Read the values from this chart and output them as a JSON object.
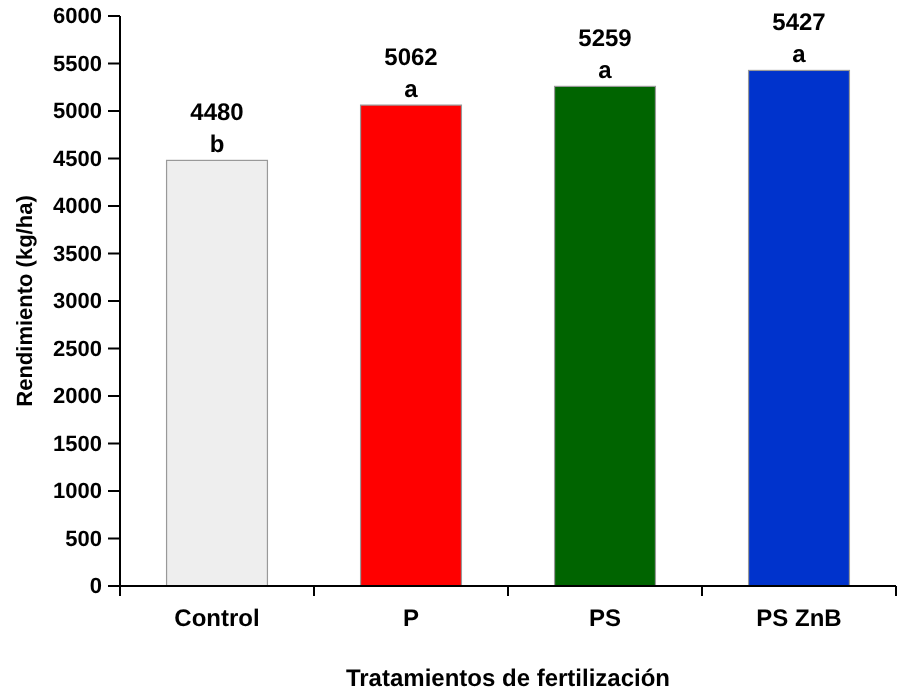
{
  "chart_data": {
    "type": "bar",
    "xlabel": "Tratamientos de fertilización",
    "ylabel": "Rendimiento (kg/ha)",
    "categories": [
      "Control",
      "P",
      "PS",
      "PS ZnB"
    ],
    "values": [
      4480,
      5062,
      5259,
      5427
    ],
    "colors": [
      "#eeeeee",
      "#ff0000",
      "#006400",
      "#0033cc"
    ],
    "ylim": [
      0,
      6000
    ],
    "yticks": [
      0,
      500,
      1000,
      1500,
      2000,
      2500,
      3000,
      3500,
      4000,
      4500,
      5000,
      5500,
      6000
    ],
    "data_labels": true,
    "annotations": [
      {
        "text": "b",
        "x": "Control",
        "y": 4480
      },
      {
        "text": "a",
        "x": "P",
        "y": 5062
      },
      {
        "text": "a",
        "x": "PS",
        "y": 5259
      },
      {
        "text": "a",
        "x": "PS ZnB",
        "y": 5427
      }
    ]
  }
}
